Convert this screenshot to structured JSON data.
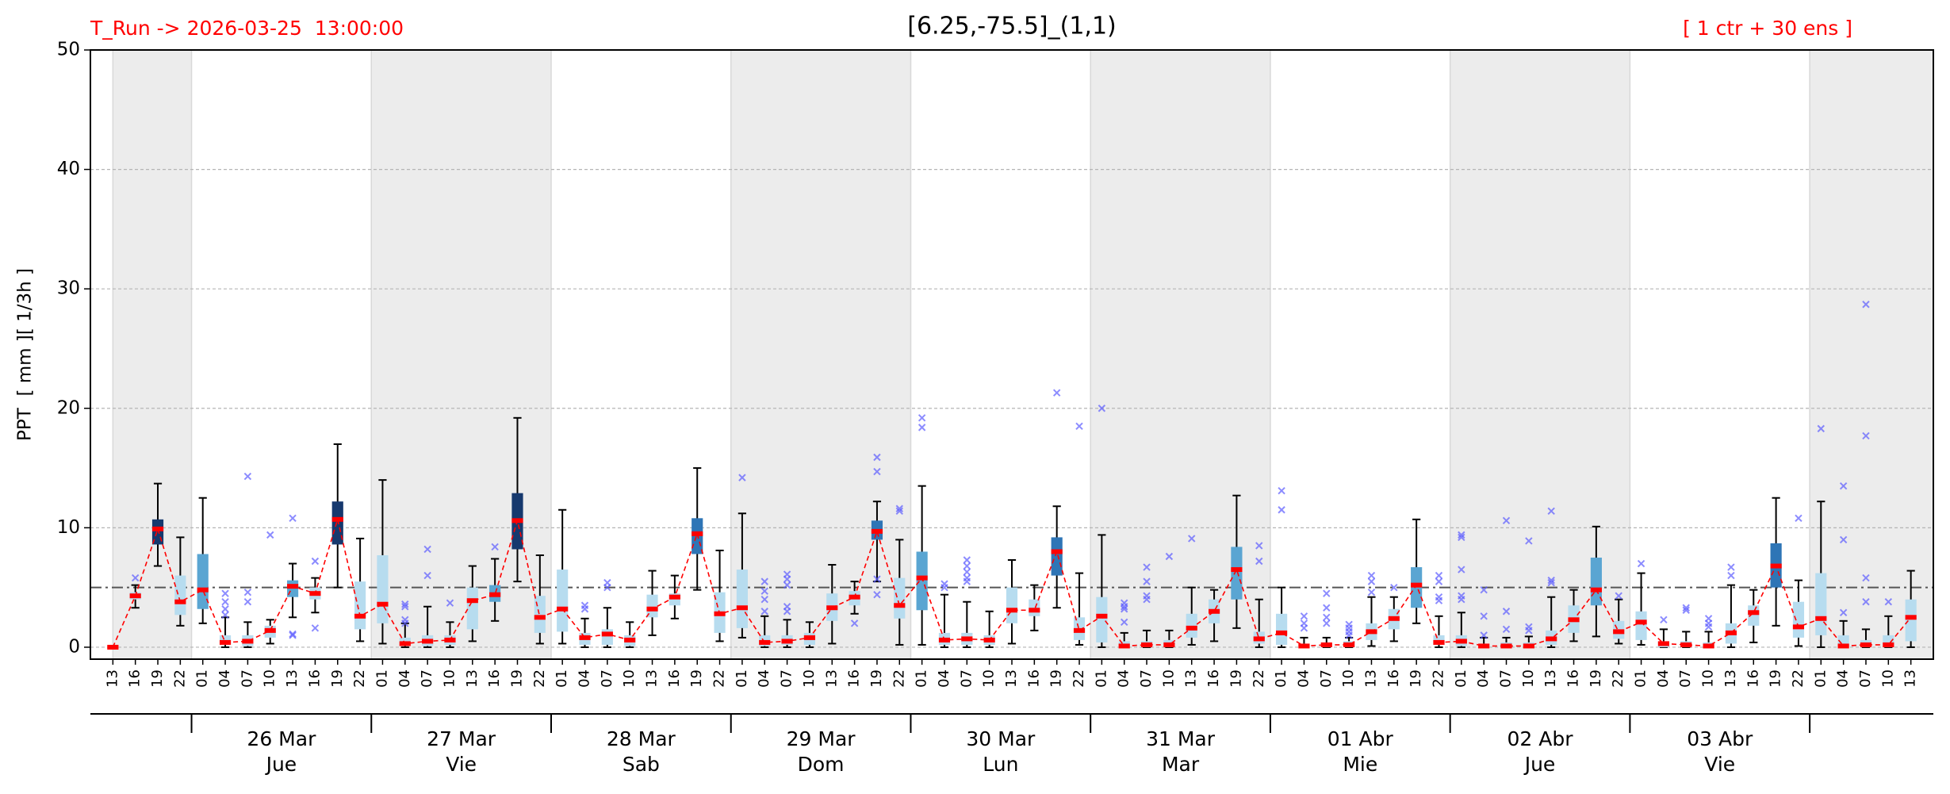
{
  "chart_data": {
    "type": "box",
    "title": "[6.25,-75.5]_(1,1)",
    "run_label": "T_Run -> 2026-03-25  13:00:00",
    "members_label": "[ 1 ctr + 30 ens ]",
    "ylabel": "PPT  [ mm ][ 1/3h ]",
    "ylim": [
      -1,
      50
    ],
    "yticks": [
      0,
      10,
      20,
      30,
      40,
      50
    ],
    "grid": true,
    "threshold": 5,
    "control_color": "#ff0000",
    "outlier_color": "#5b5bff",
    "categories": [
      "13",
      "16",
      "19",
      "22",
      "01",
      "04",
      "07",
      "10",
      "13",
      "16",
      "19",
      "22",
      "01",
      "04",
      "07",
      "10",
      "13",
      "16",
      "19",
      "22",
      "01",
      "04",
      "07",
      "10",
      "13",
      "16",
      "19",
      "22",
      "01",
      "04",
      "07",
      "10",
      "13",
      "16",
      "19",
      "22",
      "01",
      "04",
      "07",
      "10",
      "13",
      "16",
      "19",
      "22",
      "01",
      "04",
      "07",
      "10",
      "13",
      "16",
      "19",
      "22",
      "01",
      "04",
      "07",
      "10",
      "13",
      "16",
      "19",
      "22",
      "01",
      "04",
      "07",
      "10",
      "13",
      "16",
      "19",
      "22",
      "01",
      "04",
      "07",
      "10",
      "13",
      "16",
      "19",
      "22",
      "01",
      "04",
      "07",
      "10",
      "13"
    ],
    "days": [
      {
        "date": "26 Mar",
        "weekday": "Jue"
      },
      {
        "date": "27 Mar",
        "weekday": "Vie"
      },
      {
        "date": "28 Mar",
        "weekday": "Sab"
      },
      {
        "date": "29 Mar",
        "weekday": "Dom"
      },
      {
        "date": "30 Mar",
        "weekday": "Lun"
      },
      {
        "date": "31 Mar",
        "weekday": "Mar"
      },
      {
        "date": "01 Abr",
        "weekday": "Mie"
      },
      {
        "date": "02 Abr",
        "weekday": "Jue"
      },
      {
        "date": "03 Abr",
        "weekday": "Vie"
      }
    ],
    "control_values": [
      0,
      4.3,
      9.9,
      3.8,
      4.8,
      0.4,
      0.5,
      1.4,
      5.1,
      4.5,
      10.7,
      2.6,
      3.6,
      0.3,
      0.5,
      0.6,
      3.9,
      4.4,
      10.6,
      2.5,
      3.2,
      0.8,
      1.1,
      0.6,
      3.2,
      4.2,
      9.5,
      2.8,
      3.3,
      0.4,
      0.5,
      0.8,
      3.3,
      4.2,
      9.7,
      3.5,
      5.8,
      0.6,
      0.7,
      0.6,
      3.1,
      3.1,
      8.0,
      1.4,
      2.6,
      0.1,
      0.2,
      0.2,
      1.6,
      3.0,
      6.5,
      0.7,
      1.2,
      0.1,
      0.2,
      0.2,
      1.3,
      2.4,
      5.2,
      0.4,
      0.5,
      0.1,
      0.1,
      0.1,
      0.7,
      2.3,
      4.8,
      1.3,
      2.1,
      0.3,
      0.2,
      0.1,
      1.2,
      2.9,
      6.8,
      1.7,
      2.4,
      0.1,
      0.2,
      0.2,
      2.5
    ],
    "boxes": [
      {
        "low": 0,
        "q1": 0,
        "q3": 0,
        "high": 0,
        "color": "#b7dcef",
        "outliers": []
      },
      {
        "low": 3.3,
        "q1": 4.0,
        "q3": 4.6,
        "high": 5.2,
        "color": "#b7dcef",
        "outliers": [
          5.8
        ]
      },
      {
        "low": 6.8,
        "q1": 8.6,
        "q3": 10.7,
        "high": 13.7,
        "color": "#16396e",
        "outliers": []
      },
      {
        "low": 1.8,
        "q1": 2.7,
        "q3": 6.0,
        "high": 9.2,
        "color": "#b7dcef",
        "outliers": []
      },
      {
        "low": 2.0,
        "q1": 3.2,
        "q3": 7.8,
        "high": 12.5,
        "color": "#5aa5d2",
        "outliers": []
      },
      {
        "low": 0,
        "q1": 0.2,
        "q3": 1.0,
        "high": 2.5,
        "color": "#b7dcef",
        "outliers": [
          4.5,
          3.8,
          3.2,
          2.7
        ]
      },
      {
        "low": 0,
        "q1": 0.1,
        "q3": 1.0,
        "high": 2.1,
        "color": "#b7dcef",
        "outliers": [
          14.3,
          4.6,
          3.8
        ]
      },
      {
        "low": 0.3,
        "q1": 0.8,
        "q3": 1.8,
        "high": 2.3,
        "color": "#b7dcef",
        "outliers": [
          9.4
        ]
      },
      {
        "low": 2.5,
        "q1": 4.2,
        "q3": 5.6,
        "high": 7.0,
        "color": "#5aa5d2",
        "outliers": [
          10.8,
          1.1,
          1.0
        ]
      },
      {
        "low": 2.9,
        "q1": 4.0,
        "q3": 5.0,
        "high": 5.8,
        "color": "#b7dcef",
        "outliers": [
          7.2,
          1.6
        ]
      },
      {
        "low": 5.0,
        "q1": 8.6,
        "q3": 12.2,
        "high": 17.0,
        "color": "#16396e",
        "outliers": []
      },
      {
        "low": 0.5,
        "q1": 1.5,
        "q3": 5.5,
        "high": 9.1,
        "color": "#b7dcef",
        "outliers": []
      },
      {
        "low": 0.3,
        "q1": 2.0,
        "q3": 7.7,
        "high": 14.0,
        "color": "#b7dcef",
        "outliers": []
      },
      {
        "low": 0,
        "q1": 0.1,
        "q3": 0.8,
        "high": 2.0,
        "color": "#b7dcef",
        "outliers": [
          3.6,
          3.4,
          2.3,
          2.0
        ]
      },
      {
        "low": 0,
        "q1": 0.1,
        "q3": 1.0,
        "high": 3.4,
        "color": "#b7dcef",
        "outliers": [
          8.2,
          6.0
        ]
      },
      {
        "low": 0,
        "q1": 0.2,
        "q3": 1.0,
        "high": 2.1,
        "color": "#b7dcef",
        "outliers": [
          3.7
        ]
      },
      {
        "low": 0.5,
        "q1": 1.5,
        "q3": 5.0,
        "high": 6.8,
        "color": "#b7dcef",
        "outliers": []
      },
      {
        "low": 2.2,
        "q1": 3.8,
        "q3": 5.2,
        "high": 7.4,
        "color": "#5aa5d2",
        "outliers": [
          8.4
        ]
      },
      {
        "low": 5.5,
        "q1": 8.2,
        "q3": 12.9,
        "high": 19.2,
        "color": "#16396e",
        "outliers": []
      },
      {
        "low": 0.3,
        "q1": 1.2,
        "q3": 4.3,
        "high": 7.7,
        "color": "#b7dcef",
        "outliers": []
      },
      {
        "low": 0.3,
        "q1": 1.3,
        "q3": 6.5,
        "high": 11.5,
        "color": "#b7dcef",
        "outliers": []
      },
      {
        "low": 0,
        "q1": 0.2,
        "q3": 1.2,
        "high": 2.4,
        "color": "#b7dcef",
        "outliers": [
          3.5,
          3.2
        ]
      },
      {
        "low": 0,
        "q1": 0.2,
        "q3": 1.5,
        "high": 3.3,
        "color": "#b7dcef",
        "outliers": [
          5.4,
          5.0
        ]
      },
      {
        "low": 0,
        "q1": 0.1,
        "q3": 1.0,
        "high": 2.1,
        "color": "#b7dcef",
        "outliers": []
      },
      {
        "low": 1.0,
        "q1": 2.5,
        "q3": 4.4,
        "high": 6.4,
        "color": "#b7dcef",
        "outliers": []
      },
      {
        "low": 2.4,
        "q1": 3.5,
        "q3": 4.5,
        "high": 6.0,
        "color": "#b7dcef",
        "outliers": []
      },
      {
        "low": 4.8,
        "q1": 7.8,
        "q3": 10.8,
        "high": 15.0,
        "color": "#2e75b6",
        "outliers": []
      },
      {
        "low": 0.5,
        "q1": 1.2,
        "q3": 4.6,
        "high": 8.1,
        "color": "#b7dcef",
        "outliers": []
      },
      {
        "low": 0.8,
        "q1": 1.6,
        "q3": 6.5,
        "high": 11.2,
        "color": "#b7dcef",
        "outliers": [
          14.2
        ]
      },
      {
        "low": 0,
        "q1": 0.1,
        "q3": 1.0,
        "high": 2.6,
        "color": "#b7dcef",
        "outliers": [
          5.5,
          4.7,
          4.0,
          3.0
        ]
      },
      {
        "low": 0,
        "q1": 0.2,
        "q3": 1.0,
        "high": 2.3,
        "color": "#b7dcef",
        "outliers": [
          6.1,
          5.7,
          5.2,
          3.4,
          3.0
        ]
      },
      {
        "low": 0,
        "q1": 0.2,
        "q3": 1.2,
        "high": 2.1,
        "color": "#b7dcef",
        "outliers": []
      },
      {
        "low": 0.3,
        "q1": 2.2,
        "q3": 4.5,
        "high": 6.9,
        "color": "#b7dcef",
        "outliers": []
      },
      {
        "low": 2.8,
        "q1": 3.5,
        "q3": 4.7,
        "high": 5.5,
        "color": "#b7dcef",
        "outliers": [
          2.0
        ]
      },
      {
        "low": 5.5,
        "q1": 9.0,
        "q3": 10.6,
        "high": 12.2,
        "color": "#2e75b6",
        "outliers": [
          15.9,
          14.7,
          5.7,
          4.4
        ]
      },
      {
        "low": 0.2,
        "q1": 2.4,
        "q3": 5.8,
        "high": 9.0,
        "color": "#b7dcef",
        "outliers": [
          11.6,
          11.4
        ]
      },
      {
        "low": 0.2,
        "q1": 3.1,
        "q3": 8.0,
        "high": 13.5,
        "color": "#5aa5d2",
        "outliers": [
          19.2,
          18.4
        ]
      },
      {
        "low": 0,
        "q1": 0.2,
        "q3": 1.2,
        "high": 4.4,
        "color": "#b7dcef",
        "outliers": [
          5.3,
          5.0
        ]
      },
      {
        "low": 0,
        "q1": 0.2,
        "q3": 1.2,
        "high": 3.8,
        "color": "#b7dcef",
        "outliers": [
          7.3,
          6.8,
          6.3,
          5.8,
          5.5
        ]
      },
      {
        "low": 0,
        "q1": 0.2,
        "q3": 1.0,
        "high": 3.0,
        "color": "#b7dcef",
        "outliers": []
      },
      {
        "low": 0.3,
        "q1": 2.0,
        "q3": 5.0,
        "high": 7.3,
        "color": "#b7dcef",
        "outliers": []
      },
      {
        "low": 1.4,
        "q1": 2.6,
        "q3": 4.0,
        "high": 5.2,
        "color": "#b7dcef",
        "outliers": []
      },
      {
        "low": 3.3,
        "q1": 6.0,
        "q3": 9.2,
        "high": 11.8,
        "color": "#2e75b6",
        "outliers": [
          21.3
        ]
      },
      {
        "low": 0.2,
        "q1": 0.6,
        "q3": 2.5,
        "high": 6.2,
        "color": "#b7dcef",
        "outliers": [
          18.5
        ]
      },
      {
        "low": 0,
        "q1": 0.4,
        "q3": 4.2,
        "high": 9.4,
        "color": "#b7dcef",
        "outliers": [
          20.0
        ]
      },
      {
        "low": 0,
        "q1": 0,
        "q3": 0.5,
        "high": 1.2,
        "color": "#b7dcef",
        "outliers": [
          3.7,
          3.4,
          3.2,
          2.1
        ]
      },
      {
        "low": 0,
        "q1": 0,
        "q3": 0.5,
        "high": 1.4,
        "color": "#b7dcef",
        "outliers": [
          6.7,
          5.5,
          4.3,
          4.0
        ]
      },
      {
        "low": 0,
        "q1": 0,
        "q3": 0.6,
        "high": 1.4,
        "color": "#b7dcef",
        "outliers": [
          7.6
        ]
      },
      {
        "low": 0.2,
        "q1": 0.8,
        "q3": 2.8,
        "high": 5.0,
        "color": "#b7dcef",
        "outliers": [
          9.1
        ]
      },
      {
        "low": 0.5,
        "q1": 2.0,
        "q3": 4.0,
        "high": 4.8,
        "color": "#b7dcef",
        "outliers": []
      },
      {
        "low": 1.6,
        "q1": 4.0,
        "q3": 8.4,
        "high": 12.7,
        "color": "#5aa5d2",
        "outliers": []
      },
      {
        "low": 0,
        "q1": 0.3,
        "q3": 1.3,
        "high": 4.0,
        "color": "#b7dcef",
        "outliers": [
          8.5,
          7.2
        ]
      },
      {
        "low": 0,
        "q1": 0.2,
        "q3": 2.8,
        "high": 5.0,
        "color": "#b7dcef",
        "outliers": [
          13.1,
          11.5
        ]
      },
      {
        "low": 0,
        "q1": 0,
        "q3": 0.3,
        "high": 0.8,
        "color": "#b7dcef",
        "outliers": [
          2.6,
          2.0,
          1.6
        ]
      },
      {
        "low": 0,
        "q1": 0,
        "q3": 0.3,
        "high": 0.8,
        "color": "#b7dcef",
        "outliers": [
          4.5,
          3.3,
          2.5,
          2.0
        ]
      },
      {
        "low": 0,
        "q1": 0,
        "q3": 0.5,
        "high": 0.8,
        "color": "#b7dcef",
        "outliers": [
          1.9,
          1.6,
          1.3,
          1.0
        ]
      },
      {
        "low": 0.1,
        "q1": 0.6,
        "q3": 2.0,
        "high": 4.2,
        "color": "#b7dcef",
        "outliers": [
          6.0,
          5.5,
          4.6
        ]
      },
      {
        "low": 0.5,
        "q1": 1.5,
        "q3": 3.2,
        "high": 4.2,
        "color": "#b7dcef",
        "outliers": [
          5.0
        ]
      },
      {
        "low": 2.0,
        "q1": 3.3,
        "q3": 6.7,
        "high": 10.7,
        "color": "#5aa5d2",
        "outliers": []
      },
      {
        "low": 0,
        "q1": 0.2,
        "q3": 1.0,
        "high": 2.6,
        "color": "#b7dcef",
        "outliers": [
          6.0,
          5.5,
          4.2,
          3.9
        ]
      },
      {
        "low": 0,
        "q1": 0.1,
        "q3": 1.0,
        "high": 2.9,
        "color": "#b7dcef",
        "outliers": [
          9.4,
          9.2,
          6.5,
          4.3,
          4.0
        ]
      },
      {
        "low": 0,
        "q1": 0,
        "q3": 0.3,
        "high": 0.8,
        "color": "#b7dcef",
        "outliers": [
          4.8,
          2.6,
          1.0
        ]
      },
      {
        "low": 0,
        "q1": 0,
        "q3": 0.4,
        "high": 0.8,
        "color": "#b7dcef",
        "outliers": [
          10.6,
          3.0,
          1.5
        ]
      },
      {
        "low": 0,
        "q1": 0,
        "q3": 0.4,
        "high": 0.9,
        "color": "#b7dcef",
        "outliers": [
          8.9,
          1.7,
          1.4
        ]
      },
      {
        "low": 0,
        "q1": 0.2,
        "q3": 1.4,
        "high": 4.2,
        "color": "#b7dcef",
        "outliers": [
          11.4,
          5.6,
          5.4
        ]
      },
      {
        "low": 0.5,
        "q1": 1.2,
        "q3": 3.5,
        "high": 4.8,
        "color": "#b7dcef",
        "outliers": []
      },
      {
        "low": 0.9,
        "q1": 3.5,
        "q3": 7.5,
        "high": 10.1,
        "color": "#5aa5d2",
        "outliers": []
      },
      {
        "low": 0.3,
        "q1": 0.7,
        "q3": 2.2,
        "high": 4.0,
        "color": "#b7dcef",
        "outliers": [
          4.3
        ]
      },
      {
        "low": 0.2,
        "q1": 0.6,
        "q3": 3.0,
        "high": 6.2,
        "color": "#b7dcef",
        "outliers": [
          7.0
        ]
      },
      {
        "low": 0,
        "q1": 0,
        "q3": 0.5,
        "high": 1.5,
        "color": "#b7dcef",
        "outliers": [
          2.3
        ]
      },
      {
        "low": 0,
        "q1": 0,
        "q3": 0.5,
        "high": 1.3,
        "color": "#b7dcef",
        "outliers": [
          3.3,
          3.1
        ]
      },
      {
        "low": 0,
        "q1": 0,
        "q3": 0.4,
        "high": 1.3,
        "color": "#b7dcef",
        "outliers": [
          2.4,
          2.0,
          1.7
        ]
      },
      {
        "low": 0,
        "q1": 0.3,
        "q3": 2.0,
        "high": 5.2,
        "color": "#b7dcef",
        "outliers": [
          6.7,
          6.0
        ]
      },
      {
        "low": 0.4,
        "q1": 1.8,
        "q3": 3.5,
        "high": 4.8,
        "color": "#b7dcef",
        "outliers": []
      },
      {
        "low": 1.8,
        "q1": 5.0,
        "q3": 8.7,
        "high": 12.5,
        "color": "#2e75b6",
        "outliers": []
      },
      {
        "low": 0.1,
        "q1": 0.8,
        "q3": 3.8,
        "high": 5.6,
        "color": "#b7dcef",
        "outliers": [
          10.8
        ]
      },
      {
        "low": 0,
        "q1": 1.0,
        "q3": 6.2,
        "high": 12.2,
        "color": "#b7dcef",
        "outliers": [
          18.3
        ]
      },
      {
        "low": 0,
        "q1": 0,
        "q3": 1.0,
        "high": 2.2,
        "color": "#b7dcef",
        "outliers": [
          13.5,
          9.0,
          2.9
        ]
      },
      {
        "low": 0,
        "q1": 0,
        "q3": 0.6,
        "high": 1.5,
        "color": "#b7dcef",
        "outliers": [
          28.7,
          17.7,
          5.8,
          3.8
        ]
      },
      {
        "low": 0,
        "q1": 0,
        "q3": 1.0,
        "high": 2.6,
        "color": "#b7dcef",
        "outliers": [
          3.8
        ]
      },
      {
        "low": 0,
        "q1": 0.5,
        "q3": 4.0,
        "high": 6.4,
        "color": "#b7dcef",
        "outliers": []
      }
    ]
  }
}
